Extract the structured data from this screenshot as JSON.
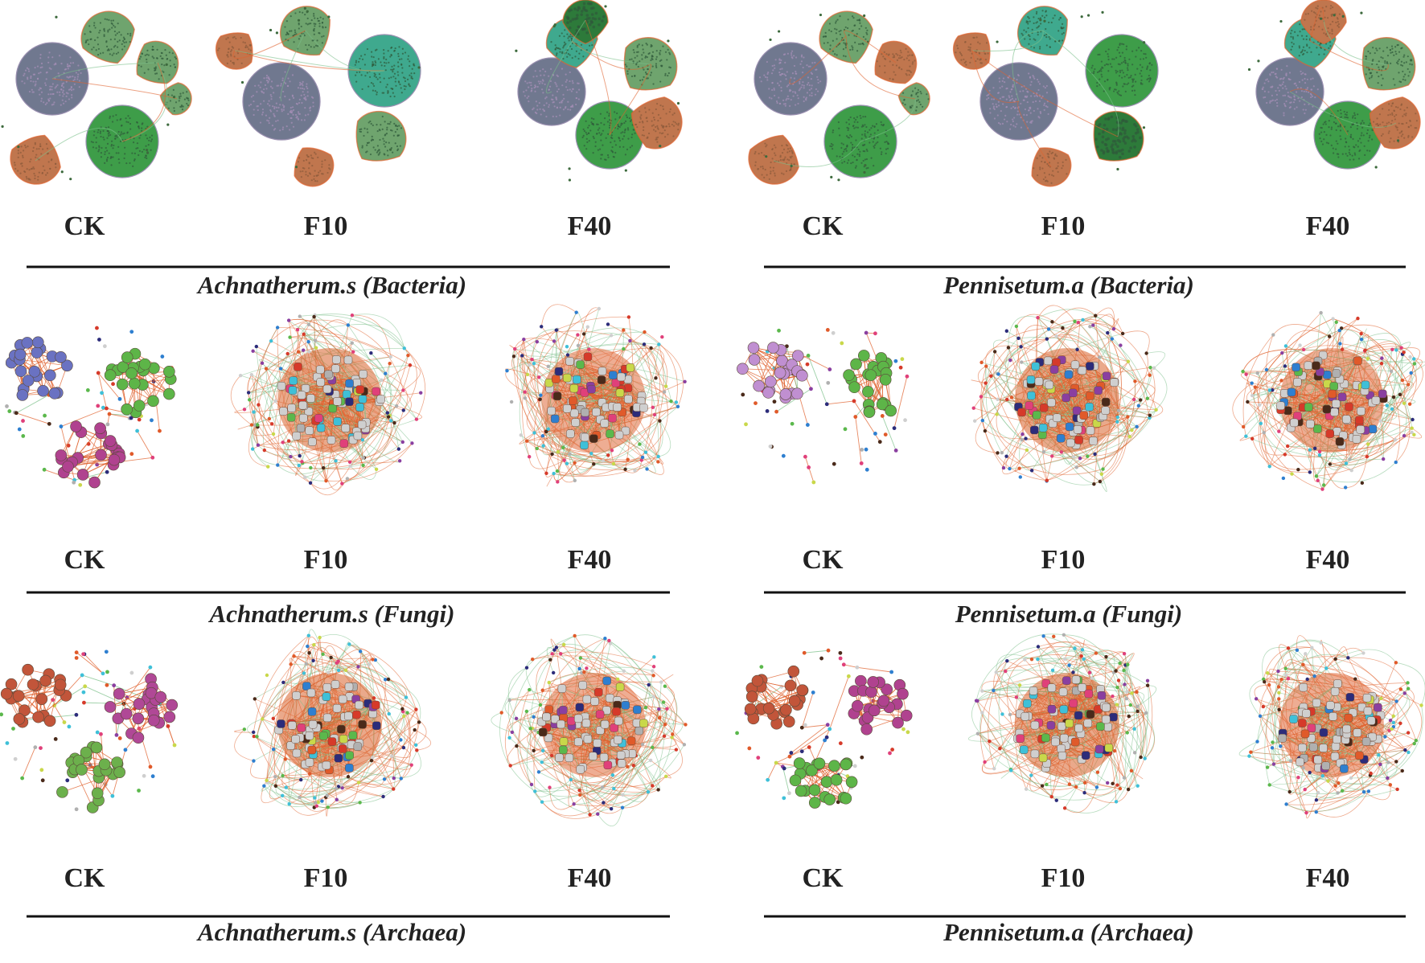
{
  "figure": {
    "groups": [
      {
        "id": "as-bacteria",
        "title": "Achnatherum.s (Bacteria)",
        "type": "bacteria",
        "networks": [
          {
            "label": "CK",
            "modules": [
              "slate",
              "grass",
              "mint",
              "mint",
              "rust",
              "mint"
            ]
          },
          {
            "label": "F10",
            "modules": [
              "slate",
              "teal",
              "mint",
              "mint",
              "rust",
              "rust"
            ]
          },
          {
            "label": "F40",
            "modules": [
              "slate",
              "grass",
              "teal",
              "mint",
              "dark",
              "rust"
            ]
          }
        ]
      },
      {
        "id": "pa-bacteria",
        "title": "Pennisetum.a (Bacteria)",
        "type": "bacteria",
        "networks": [
          {
            "label": "CK",
            "modules": [
              "slate",
              "grass",
              "mint",
              "rust",
              "rust",
              "mint"
            ]
          },
          {
            "label": "F10",
            "modules": [
              "slate",
              "grass",
              "teal",
              "dark",
              "rust",
              "rust"
            ]
          },
          {
            "label": "F40",
            "modules": [
              "slate",
              "grass",
              "teal",
              "mint",
              "rust",
              "rust"
            ]
          }
        ]
      },
      {
        "id": "as-fungi",
        "title": "Achnatherum.s (Fungi)",
        "type": "sparse",
        "networks": [
          {
            "label": "CK",
            "clusters": [
              "#6a72c2",
              "#5db548",
              "#b0428f"
            ]
          },
          {
            "label": "F10",
            "clusters": []
          },
          {
            "label": "F40",
            "clusters": []
          }
        ]
      },
      {
        "id": "pa-fungi",
        "title": "Pennisetum.a (Fungi)",
        "type": "sparse",
        "networks": [
          {
            "label": "CK",
            "clusters": [
              "#c08fd1",
              "#5db548"
            ]
          },
          {
            "label": "F10",
            "clusters": []
          },
          {
            "label": "F40",
            "clusters": []
          }
        ]
      },
      {
        "id": "as-archaea",
        "title": "Achnatherum.s (Archaea)",
        "type": "sparse",
        "networks": [
          {
            "label": "CK",
            "clusters": [
              "#c2553a",
              "#b04896",
              "#6cb04c"
            ]
          },
          {
            "label": "F10",
            "clusters": []
          },
          {
            "label": "F40",
            "clusters": []
          }
        ]
      },
      {
        "id": "pa-archaea",
        "title": "Pennisetum.a (Archaea)",
        "type": "sparse",
        "networks": [
          {
            "label": "CK",
            "clusters": [
              "#c2553a",
              "#b0428f",
              "#5db548"
            ]
          },
          {
            "label": "F10",
            "clusters": []
          },
          {
            "label": "F40",
            "clusters": []
          }
        ]
      }
    ],
    "colors": {
      "slate": "#70788f",
      "grass": "#3e9d49",
      "teal": "#3fa98e",
      "mint": "#6fa46e",
      "rust": "#c0764e",
      "dark": "#2d7a3a",
      "edge_positive": "#e0622e",
      "edge_negative": "#7cc08a",
      "node_palette": [
        "#e05a2a",
        "#cfcfcf",
        "#5bb84c",
        "#2e7fd0",
        "#c9d84a",
        "#8a3fa0",
        "#2c2c7a",
        "#3fc0d8",
        "#e0407a",
        "#b0b0b0",
        "#d63a2a",
        "#4a2a1a"
      ]
    }
  }
}
